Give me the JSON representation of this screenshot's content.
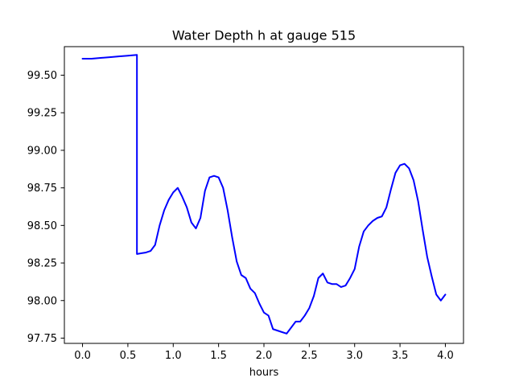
{
  "chart_data": {
    "type": "line",
    "title": "Water Depth h at gauge 515",
    "xlabel": "hours",
    "ylabel": "",
    "xlim": [
      -0.2,
      4.2
    ],
    "ylim": [
      97.715,
      99.69
    ],
    "xticks": [
      0.0,
      0.5,
      1.0,
      1.5,
      2.0,
      2.5,
      3.0,
      3.5,
      4.0
    ],
    "xtick_labels": [
      "0.0",
      "0.5",
      "1.0",
      "1.5",
      "2.0",
      "2.5",
      "3.0",
      "3.5",
      "4.0"
    ],
    "yticks": [
      97.75,
      98.0,
      98.25,
      98.5,
      98.75,
      99.0,
      99.25,
      99.5
    ],
    "ytick_labels": [
      "97.75",
      "98.00",
      "98.25",
      "98.50",
      "98.75",
      "99.00",
      "99.25",
      "99.50"
    ],
    "grid": false,
    "series": [
      {
        "color": "#0000ff",
        "x": [
          0.0,
          0.1,
          0.2,
          0.3,
          0.4,
          0.5,
          0.6,
          0.6,
          0.65,
          0.7,
          0.75,
          0.8,
          0.85,
          0.9,
          0.95,
          1.0,
          1.05,
          1.1,
          1.15,
          1.2,
          1.25,
          1.3,
          1.35,
          1.4,
          1.45,
          1.5,
          1.55,
          1.6,
          1.65,
          1.7,
          1.75,
          1.8,
          1.85,
          1.9,
          1.95,
          2.0,
          2.05,
          2.1,
          2.15,
          2.2,
          2.25,
          2.3,
          2.35,
          2.4,
          2.45,
          2.5,
          2.55,
          2.6,
          2.65,
          2.7,
          2.75,
          2.8,
          2.85,
          2.9,
          2.95,
          3.0,
          3.05,
          3.1,
          3.15,
          3.2,
          3.25,
          3.3,
          3.35,
          3.4,
          3.45,
          3.5,
          3.55,
          3.6,
          3.65,
          3.7,
          3.75,
          3.8,
          3.85,
          3.9,
          3.95,
          4.0
        ],
        "y": [
          99.61,
          99.61,
          99.615,
          99.62,
          99.625,
          99.63,
          99.635,
          98.31,
          98.315,
          98.32,
          98.33,
          98.37,
          98.5,
          98.6,
          98.67,
          98.72,
          98.75,
          98.69,
          98.62,
          98.52,
          98.48,
          98.55,
          98.73,
          98.82,
          98.83,
          98.82,
          98.75,
          98.6,
          98.42,
          98.26,
          98.17,
          98.15,
          98.08,
          98.05,
          97.98,
          97.92,
          97.9,
          97.81,
          97.8,
          97.79,
          97.78,
          97.82,
          97.86,
          97.86,
          97.9,
          97.95,
          98.03,
          98.15,
          98.18,
          98.12,
          98.11,
          98.11,
          98.09,
          98.1,
          98.15,
          98.21,
          98.36,
          98.46,
          98.5,
          98.53,
          98.55,
          98.56,
          98.62,
          98.74,
          98.85,
          98.9,
          98.91,
          98.88,
          98.8,
          98.66,
          98.47,
          98.29,
          98.16,
          98.04,
          98.0,
          98.04
        ]
      }
    ]
  }
}
